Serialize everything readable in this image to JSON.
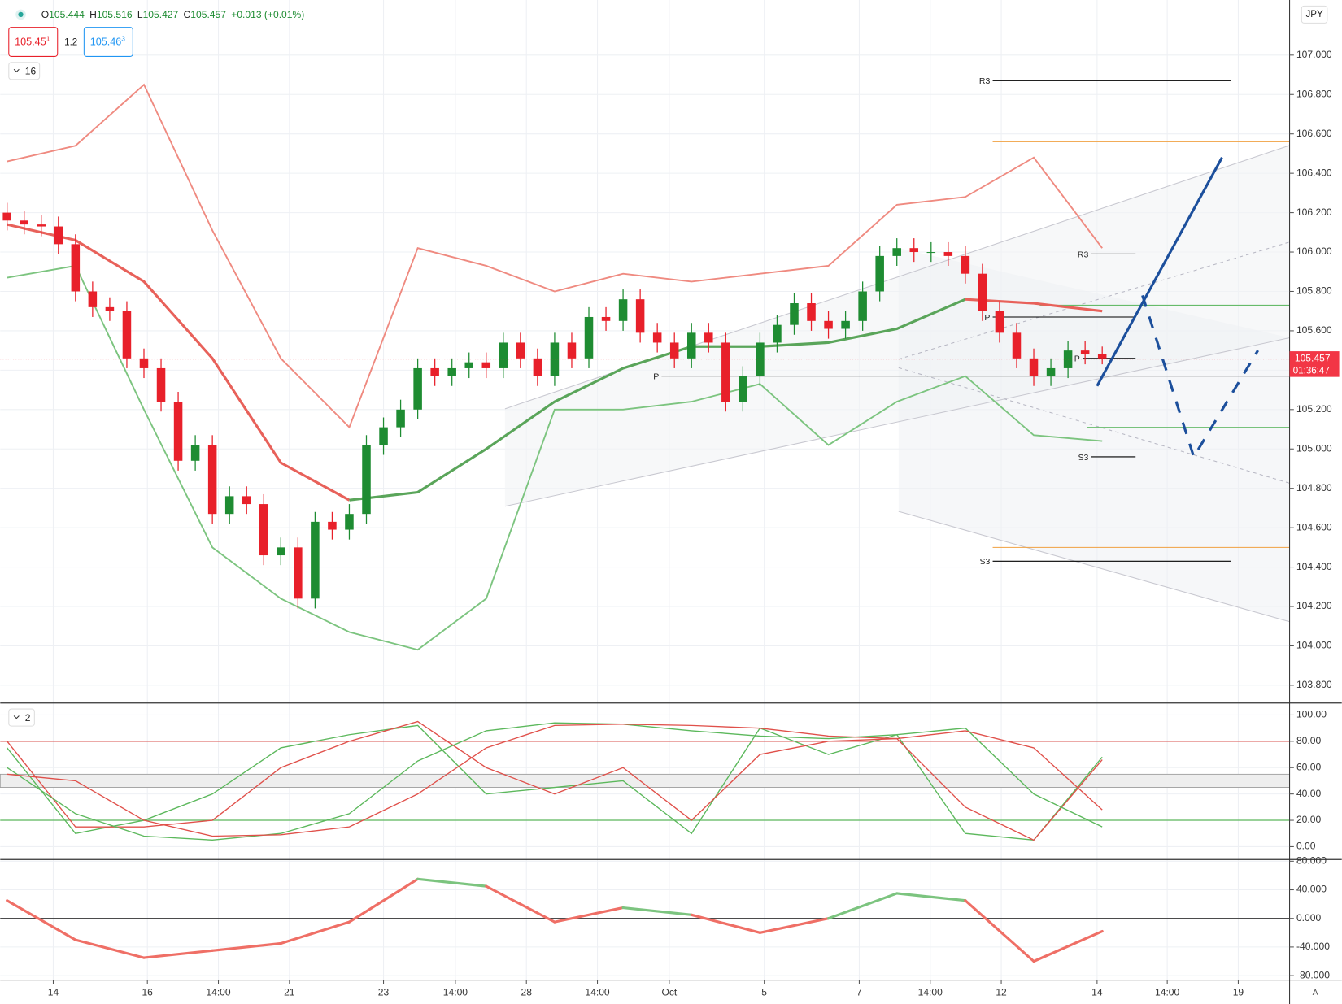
{
  "toolbar": {
    "ohlc": [
      {
        "key": "O",
        "value": "105.444"
      },
      {
        "key": "H",
        "value": "105.516"
      },
      {
        "key": "L",
        "value": "105.427"
      },
      {
        "key": "C",
        "value": "105.457"
      }
    ],
    "change": "+0.013 (+0.01%)",
    "sell": {
      "price": "105.45",
      "sup": "1"
    },
    "spread": "1.2",
    "buy": {
      "price": "105.46",
      "sup": "3"
    },
    "indicators_count": "16",
    "oscillator_count": "2",
    "currency": "JPY",
    "auto": "A"
  },
  "chart_data": [
    {
      "type": "candlestick",
      "xlim": [
        -0.4,
        74.95
      ],
      "xticks": [
        {
          "value": 2.7,
          "label": "14"
        },
        {
          "value": 8.2,
          "label": "16"
        },
        {
          "value": 12.35,
          "label": "14:00"
        },
        {
          "value": 16.5,
          "label": "21"
        },
        {
          "value": 22,
          "label": "23"
        },
        {
          "value": 26.2,
          "label": "14:00"
        },
        {
          "value": 30.35,
          "label": "28"
        },
        {
          "value": 34.5,
          "label": "14:00"
        },
        {
          "value": 38.7,
          "label": "Oct"
        },
        {
          "value": 44.25,
          "label": "5"
        },
        {
          "value": 49.8,
          "label": "7"
        },
        {
          "value": 53.95,
          "label": "14:00"
        },
        {
          "value": 58.1,
          "label": "12"
        },
        {
          "value": 63.7,
          "label": "14"
        },
        {
          "value": 67.8,
          "label": "14:00"
        },
        {
          "value": 71.95,
          "label": "19"
        }
      ],
      "ylim": [
        103.71,
        107.28
      ],
      "yticks": [
        {
          "value": 103.8,
          "label": "103.800"
        },
        {
          "value": 104.0,
          "label": "104.000"
        },
        {
          "value": 104.2,
          "label": "104.200"
        },
        {
          "value": 104.4,
          "label": "104.400"
        },
        {
          "value": 104.6,
          "label": "104.600"
        },
        {
          "value": 104.8,
          "label": "104.800"
        },
        {
          "value": 105.0,
          "label": "105.000"
        },
        {
          "value": 105.2,
          "label": "105.200"
        },
        {
          "value": 105.4,
          "label": "105.400"
        },
        {
          "value": 105.6,
          "label": "105.600"
        },
        {
          "value": 105.8,
          "label": "105.800"
        },
        {
          "value": 106.0,
          "label": "106.000"
        },
        {
          "value": 106.2,
          "label": "106.200"
        },
        {
          "value": 106.4,
          "label": "106.400"
        },
        {
          "value": 106.6,
          "label": "106.600"
        },
        {
          "value": 106.8,
          "label": "106.800"
        },
        {
          "value": 107.0,
          "label": "107.000"
        }
      ],
      "grid": true,
      "up_color": "#1e8c32",
      "down_color": "#e8202a",
      "open": [
        106.2,
        106.16,
        106.14,
        106.13,
        106.04,
        105.8,
        105.72,
        105.7,
        105.46,
        105.41,
        105.24,
        104.94,
        105.02,
        104.67,
        104.76,
        104.72,
        104.46,
        104.5,
        104.24,
        104.63,
        104.59,
        104.67,
        105.02,
        105.11,
        105.2,
        105.41,
        105.37,
        105.41,
        105.44,
        105.41,
        105.54,
        105.46,
        105.37,
        105.54,
        105.46,
        105.67,
        105.65,
        105.76,
        105.59,
        105.54,
        105.46,
        105.59,
        105.54,
        105.24,
        105.37,
        105.54,
        105.63,
        105.74,
        105.65,
        105.61,
        105.65,
        105.8,
        105.98,
        106.02,
        106.0,
        106.0,
        105.98,
        105.89,
        105.7,
        105.59,
        105.46,
        105.37,
        105.41,
        105.5,
        105.48
      ],
      "high": [
        106.25,
        106.21,
        106.19,
        106.18,
        106.09,
        105.85,
        105.77,
        105.75,
        105.51,
        105.46,
        105.29,
        105.07,
        105.07,
        104.81,
        104.81,
        104.77,
        104.55,
        104.55,
        104.68,
        104.68,
        104.72,
        105.07,
        105.16,
        105.25,
        105.46,
        105.46,
        105.46,
        105.49,
        105.49,
        105.59,
        105.59,
        105.51,
        105.59,
        105.59,
        105.72,
        105.72,
        105.81,
        105.81,
        105.64,
        105.59,
        105.64,
        105.64,
        105.59,
        105.42,
        105.59,
        105.68,
        105.79,
        105.79,
        105.7,
        105.7,
        105.85,
        106.03,
        106.07,
        106.07,
        106.05,
        106.05,
        106.03,
        105.94,
        105.75,
        105.64,
        105.51,
        105.46,
        105.55,
        105.55,
        105.52
      ],
      "low": [
        106.11,
        106.09,
        106.08,
        105.99,
        105.75,
        105.67,
        105.65,
        105.41,
        105.36,
        105.19,
        104.89,
        104.89,
        104.62,
        104.62,
        104.67,
        104.41,
        104.41,
        104.19,
        104.19,
        104.54,
        104.54,
        104.62,
        104.97,
        105.06,
        105.15,
        105.32,
        105.32,
        105.36,
        105.36,
        105.36,
        105.41,
        105.32,
        105.32,
        105.41,
        105.41,
        105.6,
        105.6,
        105.54,
        105.49,
        105.41,
        105.41,
        105.49,
        105.19,
        105.19,
        105.32,
        105.49,
        105.58,
        105.6,
        105.56,
        105.56,
        105.6,
        105.75,
        105.93,
        105.95,
        105.95,
        105.93,
        105.84,
        105.65,
        105.54,
        105.41,
        105.32,
        105.32,
        105.36,
        105.43,
        105.43
      ],
      "close": [
        106.16,
        106.14,
        106.13,
        106.04,
        105.8,
        105.72,
        105.7,
        105.46,
        105.41,
        105.24,
        104.94,
        105.02,
        104.67,
        104.76,
        104.72,
        104.46,
        104.5,
        104.24,
        104.63,
        104.59,
        104.67,
        105.02,
        105.11,
        105.2,
        105.41,
        105.37,
        105.41,
        105.44,
        105.41,
        105.54,
        105.46,
        105.37,
        105.54,
        105.46,
        105.67,
        105.65,
        105.76,
        105.59,
        105.54,
        105.46,
        105.59,
        105.54,
        105.24,
        105.37,
        105.54,
        105.63,
        105.74,
        105.65,
        105.61,
        105.65,
        105.8,
        105.98,
        106.02,
        106.0,
        106.0,
        105.98,
        105.89,
        105.7,
        105.59,
        105.46,
        105.37,
        105.41,
        105.5,
        105.48,
        105.46
      ],
      "overlays": [
        {
          "color": "#ef8a80",
          "x": [
            0,
            4,
            8,
            12,
            16,
            20,
            24,
            28,
            32,
            36,
            40,
            44,
            48,
            52,
            56,
            60,
            64
          ],
          "values": [
            106.46,
            106.54,
            106.85,
            106.11,
            105.46,
            105.11,
            106.02,
            105.93,
            105.8,
            105.89,
            105.85,
            105.89,
            105.93,
            106.24,
            106.28,
            106.48,
            106.02
          ]
        },
        {
          "color": "#7cc47f",
          "x": [
            0,
            4,
            8,
            12,
            16,
            20,
            24,
            28,
            32,
            36,
            40,
            44,
            48,
            52,
            56,
            60,
            64
          ],
          "values": [
            105.87,
            105.93,
            105.2,
            104.5,
            104.24,
            104.07,
            103.98,
            104.24,
            105.2,
            105.2,
            105.24,
            105.33,
            105.02,
            105.24,
            105.37,
            105.07,
            105.04
          ]
        },
        {
          "color": "#e8615a",
          "x": [
            0,
            4,
            8,
            12,
            16,
            20
          ],
          "values": [
            106.14,
            106.06,
            105.85,
            105.46,
            104.93,
            104.74
          ]
        },
        {
          "color": "#5aa55a",
          "x": [
            20,
            24,
            28,
            32,
            36,
            40,
            44,
            48,
            52,
            56
          ],
          "values": [
            104.74,
            104.78,
            105.0,
            105.24,
            105.41,
            105.52,
            105.52,
            105.54,
            105.61,
            105.76
          ]
        },
        {
          "color": "#e8615a",
          "x": [
            56,
            60,
            64
          ],
          "values": [
            105.76,
            105.74,
            105.7
          ]
        }
      ],
      "levels": [
        {
          "label": "R3",
          "value": 106.87,
          "x": [
            57.6,
            71.5
          ],
          "color": "#000000"
        },
        {
          "label": "S3",
          "value": 104.43,
          "x": [
            57.6,
            71.5
          ],
          "color": "#000000"
        },
        {
          "label": "R3",
          "value": 105.99,
          "x": [
            63.35,
            65.95
          ],
          "color": "#000000"
        },
        {
          "label": "S3",
          "value": 104.96,
          "x": [
            63.35,
            65.95
          ],
          "color": "#000000"
        },
        {
          "label": "P",
          "value": 105.37,
          "x": [
            38.25,
            74.95
          ],
          "color": "#000000"
        },
        {
          "label": "P",
          "value": 105.67,
          "x": [
            57.6,
            65.95
          ],
          "color": "#000000"
        },
        {
          "label": "P",
          "value": 105.46,
          "x": [
            62.85,
            65.95
          ],
          "color": "#000000"
        },
        {
          "value": 106.56,
          "x": [
            57.6,
            74.95
          ],
          "color": "#f0a040"
        },
        {
          "value": 104.5,
          "x": [
            57.6,
            74.95
          ],
          "color": "#f0a040"
        },
        {
          "value": 105.73,
          "x": [
            60.35,
            74.95
          ],
          "color": "#66bb6a"
        },
        {
          "value": 105.11,
          "x": [
            63.1,
            74.95
          ],
          "color": "#66bb6a"
        }
      ],
      "last_price": {
        "value": 105.457,
        "label": "105.457",
        "timer": "01:36:47",
        "color": "#f23645"
      },
      "projection": {
        "color": "#1c4f9c",
        "solid": {
          "x": [
            63.7,
            71
          ],
          "values": [
            105.32,
            106.48
          ]
        },
        "dashed": {
          "x": [
            66.35,
            69.35,
            73.1
          ],
          "values": [
            105.78,
            104.96,
            105.5
          ]
        }
      }
    },
    {
      "type": "line",
      "ylim": [
        -9.74,
        109.1
      ],
      "yticks": [
        {
          "value": 0,
          "label": "0.00"
        },
        {
          "value": 20,
          "label": "20.00"
        },
        {
          "value": 40,
          "label": "40.00"
        },
        {
          "value": 60,
          "label": "60.00"
        },
        {
          "value": 80,
          "label": "80.00"
        },
        {
          "value": 100,
          "label": "100.00"
        }
      ],
      "band": [
        45,
        55
      ],
      "hlines": [
        {
          "value": 80,
          "color": "#d9534f"
        },
        {
          "value": 20,
          "color": "#5cb85c"
        }
      ],
      "x": [
        0,
        4,
        8,
        12,
        16,
        20,
        24,
        28,
        32,
        36,
        40,
        44,
        48,
        52,
        56,
        60,
        64
      ],
      "series": [
        {
          "color": "#5cb85c",
          "values": [
            75,
            10,
            20,
            40,
            75,
            85,
            92,
            40,
            45,
            50,
            10,
            90,
            70,
            85,
            10,
            5,
            68
          ]
        },
        {
          "color": "#e0504a",
          "values": [
            80,
            15,
            15,
            20,
            60,
            80,
            95,
            60,
            40,
            60,
            20,
            70,
            80,
            82,
            30,
            5,
            66
          ]
        },
        {
          "color": "#5cb85c",
          "values": [
            60,
            25,
            8,
            5,
            10,
            25,
            65,
            88,
            94,
            93,
            88,
            84,
            82,
            85,
            90,
            40,
            15
          ]
        },
        {
          "color": "#e0504a",
          "values": [
            55,
            50,
            20,
            8,
            9,
            15,
            40,
            75,
            92,
            93,
            92,
            90,
            84,
            82,
            88,
            75,
            28
          ]
        }
      ]
    },
    {
      "type": "line",
      "ylim": [
        -85,
        82.4
      ],
      "yticks": [
        {
          "value": -80,
          "label": "-80.000"
        },
        {
          "value": -40,
          "label": "-40.000"
        },
        {
          "value": 0,
          "label": "0.000"
        },
        {
          "value": 40,
          "label": "40.000"
        },
        {
          "value": 80,
          "label": "80.000"
        }
      ],
      "hlines": [
        {
          "value": 0,
          "color": "#333333"
        }
      ],
      "x": [
        0,
        4,
        8,
        12,
        16,
        20,
        24,
        28,
        32,
        36,
        40,
        44,
        48,
        52,
        56,
        60,
        64
      ],
      "positive_color": "#7cc47f",
      "negative_color": "#ef6f66",
      "values": [
        25,
        -30,
        -55,
        -45,
        -35,
        -5,
        55,
        45,
        -5,
        15,
        5,
        -20,
        0,
        35,
        25,
        -60,
        -18
      ]
    }
  ]
}
